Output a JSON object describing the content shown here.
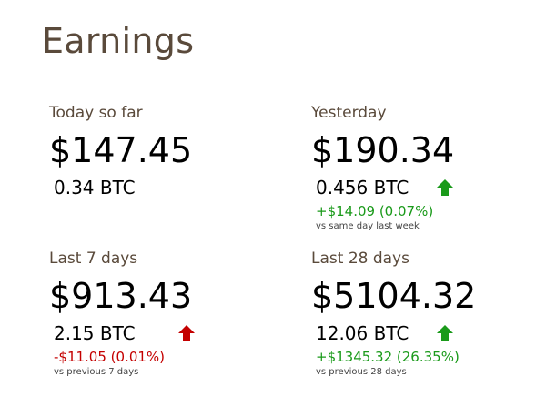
{
  "page": {
    "title": "Earnings"
  },
  "cards": {
    "today": {
      "label": "Today so far",
      "amount": "$147.45",
      "btc": "0.34 BTC"
    },
    "yesterday": {
      "label": "Yesterday",
      "amount": "$190.34",
      "btc": "0.456 BTC",
      "trend": "up",
      "change": "+$14.09 (0.07%)",
      "compare": "vs same day last week"
    },
    "last7": {
      "label": "Last 7 days",
      "amount": "$913.43",
      "btc": "2.15 BTC",
      "trend": "down",
      "change": "-$11.05 (0.01%)",
      "compare": "vs previous 7 days"
    },
    "last28": {
      "label": "Last 28 days",
      "amount": "$5104.32",
      "btc": "12.06 BTC",
      "trend": "up",
      "change": "+$1345.32 (26.35%)",
      "compare": "vs previous 28 days"
    }
  },
  "colors": {
    "title": "#5a4a3b",
    "up": "#1a9a1a",
    "down": "#c40000"
  },
  "icons": {
    "up": "arrow-up-icon",
    "down": "arrow-down-icon"
  }
}
